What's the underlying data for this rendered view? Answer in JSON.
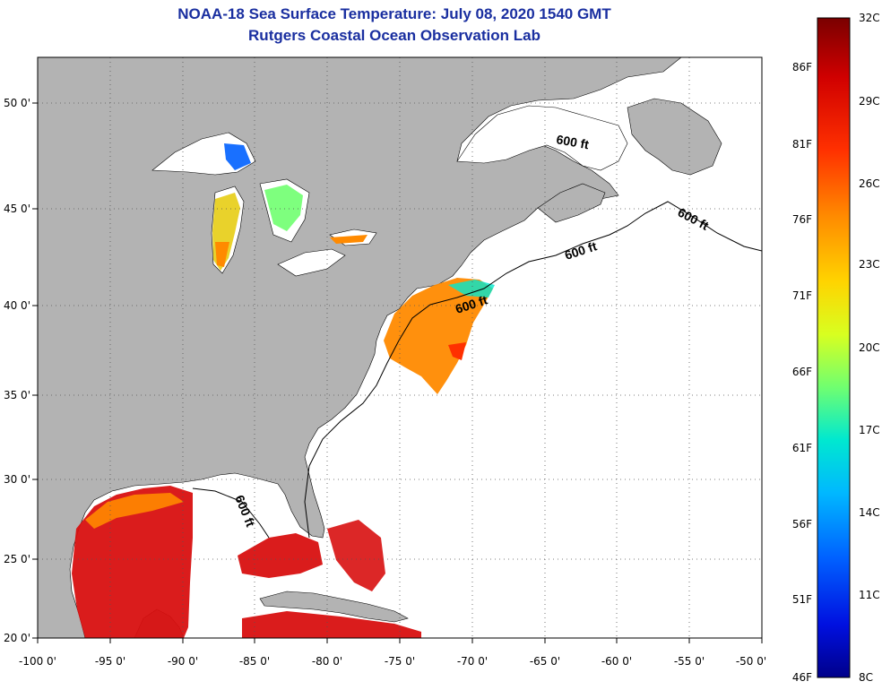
{
  "title": "NOAA-18 Sea Surface Temperature:  July 08, 2020 1540 GMT",
  "subtitle": "Rutgers Coastal Ocean Observation Lab",
  "map": {
    "lon_ticks": [
      "-100 0'",
      "-95 0'",
      "-90 0'",
      "-85 0'",
      "-80 0'",
      "-75 0'",
      "-70 0'",
      "-65 0'",
      "-60 0'",
      "-55 0'",
      "-50 0'"
    ],
    "lat_ticks": [
      "50 0'",
      "45 0'",
      "40 0'",
      "35 0'",
      "30 0'",
      "25 0'",
      "20 0'"
    ],
    "lon_range": [
      -100,
      -50
    ],
    "lat_range": [
      20,
      52
    ],
    "contour_label": "600 ft",
    "colors": {
      "land": "#b3b3b3",
      "ocean": "#ffffff"
    }
  },
  "colorbar": {
    "range_c": [
      8,
      32
    ],
    "celsius_labels": [
      "32C",
      "29C",
      "26C",
      "23C",
      "20C",
      "17C",
      "14C",
      "11C",
      "8C"
    ],
    "fahrenheit_labels": [
      "86F",
      "81F",
      "76F",
      "71F",
      "66F",
      "61F",
      "56F",
      "51F",
      "46F"
    ],
    "colors": [
      "#7a0000",
      "#d00000",
      "#ff3000",
      "#ff8a00",
      "#ffd400",
      "#d8ff20",
      "#70ff70",
      "#00e8d0",
      "#00b8ff",
      "#0060ff",
      "#0010e0",
      "#00008a"
    ]
  }
}
